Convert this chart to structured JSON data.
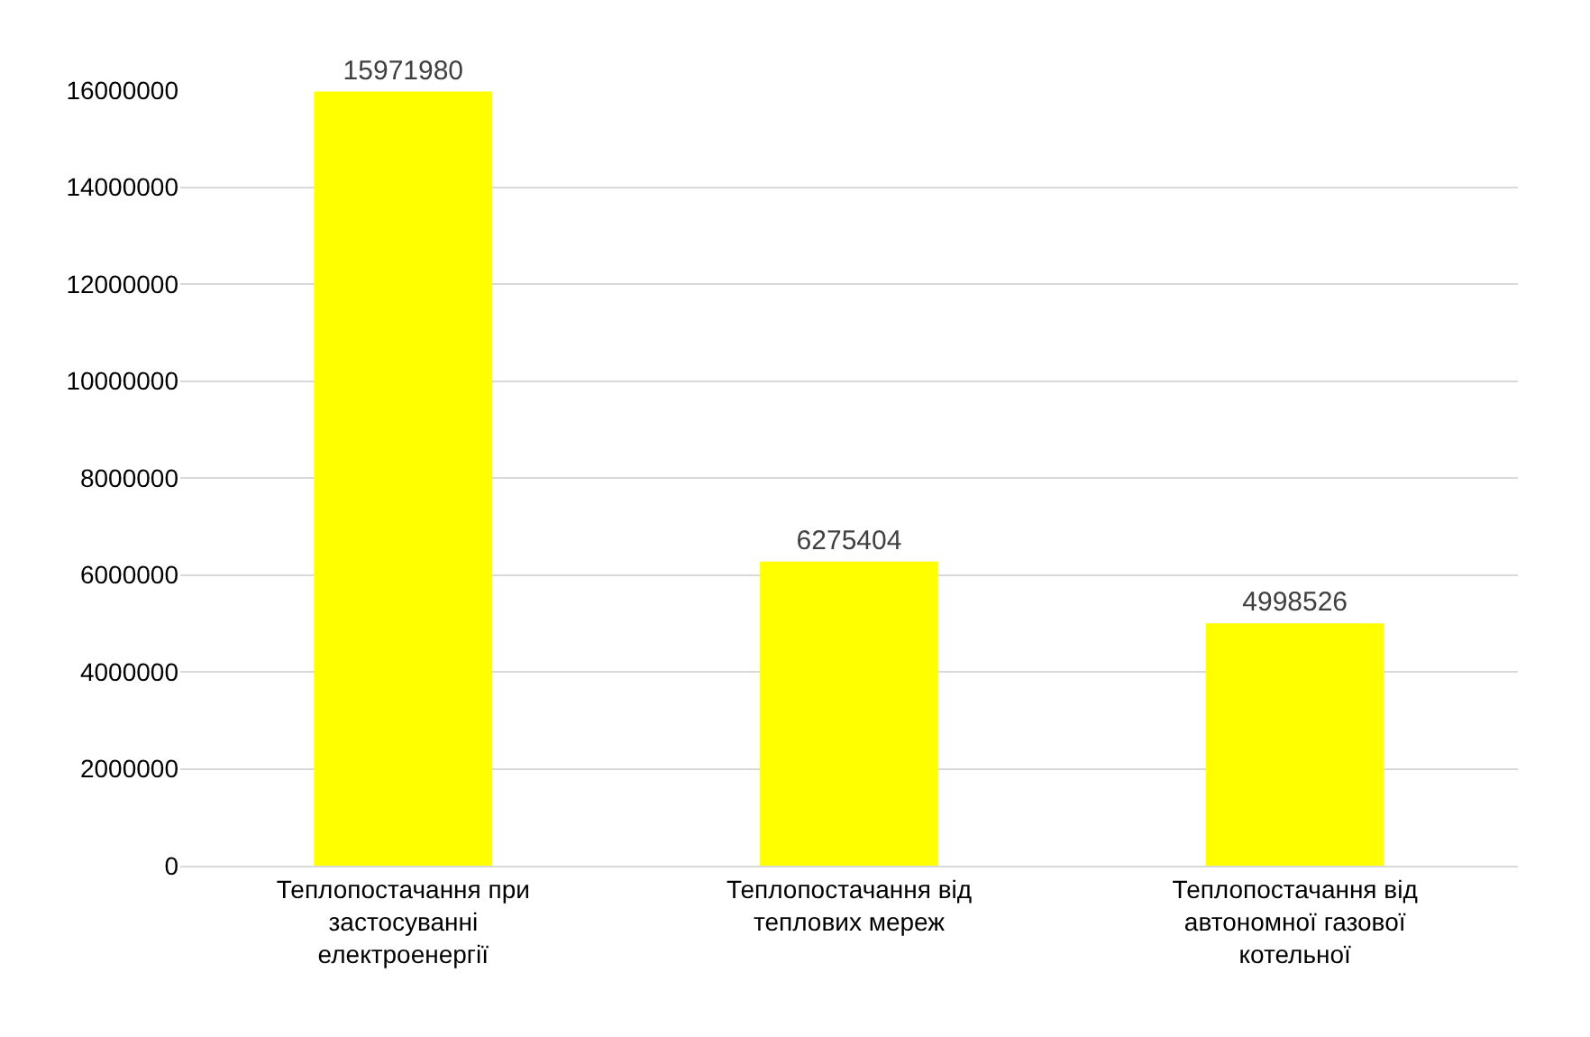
{
  "chart_data": {
    "type": "bar",
    "categories": [
      "Теплопостачання при застосуванні електроенергії",
      "Теплопостачання від теплових мереж",
      "Теплопостачання від автономної газової котельної"
    ],
    "values": [
      15971980,
      6275404,
      4998526
    ],
    "color": "#ffff00",
    "ylim": [
      0,
      16000000
    ],
    "yticks": [
      0,
      2000000,
      4000000,
      6000000,
      8000000,
      10000000,
      12000000,
      14000000,
      16000000
    ],
    "grid": "y",
    "data_labels": true
  }
}
